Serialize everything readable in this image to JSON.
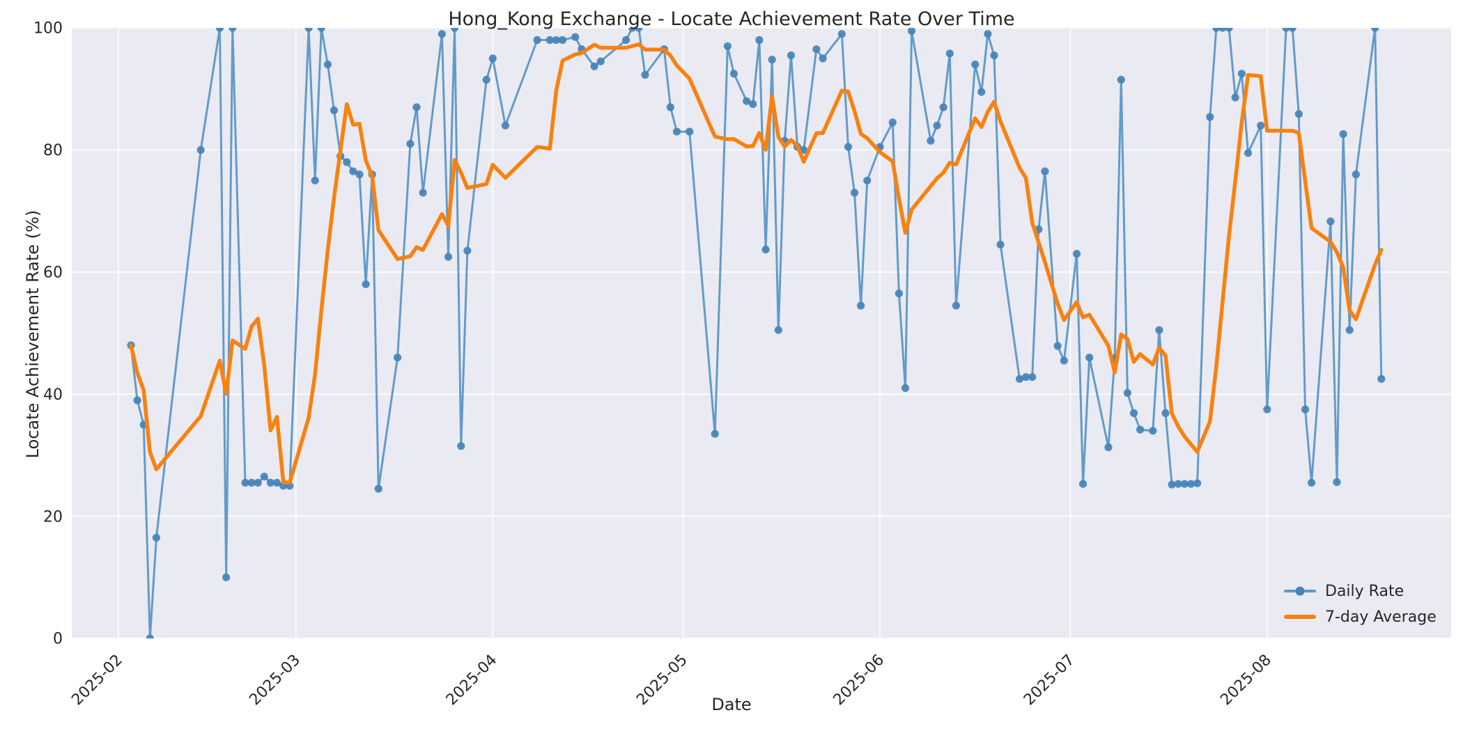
{
  "figure": {
    "title": "Hong_Kong Exchange - Locate Achievement Rate Over Time",
    "background": "#ffffff"
  },
  "axes": {
    "xlabel": "Date",
    "ylabel": "Locate Achievement Rate (%)",
    "background": "#eaeaf2",
    "grid_color": "#ffffff",
    "tick_color": "#262626",
    "y_ticks": [
      0,
      20,
      40,
      60,
      80,
      100
    ],
    "x_ticks": [
      {
        "label": "2025-02",
        "day_index": -2
      },
      {
        "label": "2025-03",
        "day_index": 26
      },
      {
        "label": "2025-04",
        "day_index": 57
      },
      {
        "label": "2025-05",
        "day_index": 87
      },
      {
        "label": "2025-06",
        "day_index": 118
      },
      {
        "label": "2025-07",
        "day_index": 148
      },
      {
        "label": "2025-08",
        "day_index": 179
      }
    ]
  },
  "legend": {
    "items": [
      {
        "label": "Daily Rate",
        "color": "#5b97c7",
        "marker_color": "#4583b7",
        "type": "line-marker"
      },
      {
        "label": "7-day Average",
        "color": "#f9810f",
        "type": "line"
      }
    ]
  },
  "chart_data": {
    "type": "line",
    "title": "Hong_Kong Exchange - Locate Achievement Rate Over Time",
    "xlabel": "Date",
    "ylabel": "Locate Achievement Rate (%)",
    "ylim": [
      0,
      100
    ],
    "xlim_day_index": [
      -9.33,
      208
    ],
    "grid": true,
    "legend_position": "lower right",
    "x_start_date": "2025-02-03",
    "x_unit": "day",
    "note_missing_days": "null entries are days with no observation; the line connects across them",
    "series": [
      {
        "name": "Daily Rate",
        "color": "#5b97c7",
        "marker": "o",
        "values": [
          48,
          39,
          35,
          0,
          16.5,
          null,
          null,
          null,
          null,
          null,
          null,
          80,
          null,
          null,
          100,
          10,
          100,
          null,
          25.5,
          25.5,
          25.5,
          26.5,
          25.5,
          25.5,
          25,
          25,
          null,
          null,
          100,
          75,
          100,
          94,
          86.5,
          79,
          78,
          76.5,
          76,
          58,
          76,
          24.5,
          null,
          null,
          46,
          null,
          81,
          87,
          73,
          null,
          null,
          99,
          62.5,
          100,
          31.5,
          63.5,
          null,
          null,
          91.5,
          95,
          null,
          84,
          null,
          null,
          null,
          null,
          98,
          null,
          98,
          98,
          98,
          null,
          98.5,
          96.5,
          null,
          93.7,
          94.5,
          null,
          null,
          null,
          98,
          100,
          100,
          92.3,
          null,
          null,
          96.5,
          87,
          83,
          null,
          83,
          null,
          null,
          null,
          33.5,
          null,
          97,
          92.5,
          null,
          88,
          87.5,
          98,
          63.7,
          94.8,
          50.5,
          81.5,
          95.5,
          80.5,
          80,
          null,
          96.5,
          95,
          null,
          null,
          99,
          80.5,
          73,
          54.5,
          75,
          null,
          80.5,
          null,
          84.5,
          56.5,
          41,
          99.5,
          null,
          null,
          81.5,
          84,
          87,
          95.8,
          54.5,
          null,
          null,
          94,
          89.5,
          99,
          95.5,
          64.5,
          null,
          null,
          42.5,
          42.8,
          42.8,
          67,
          76.5,
          null,
          47.9,
          45.5,
          null,
          63,
          25.3,
          46,
          null,
          null,
          31.3,
          45.9,
          91.5,
          40.2,
          36.9,
          34.2,
          null,
          34,
          50.5,
          36.9,
          25.2,
          25.3,
          25.3,
          25.3,
          25.4,
          null,
          85.4,
          100,
          100,
          100,
          88.6,
          92.5,
          79.5,
          null,
          84,
          37.5,
          null,
          null,
          100,
          100,
          85.9,
          37.5,
          25.5,
          null,
          null,
          68.3,
          25.6,
          82.6,
          50.5,
          76,
          null,
          null,
          100,
          42.5
        ]
      },
      {
        "name": "7-day Average",
        "color": "#f9810f",
        "derived": "rolling_mean_of_last_7_observations"
      }
    ]
  }
}
